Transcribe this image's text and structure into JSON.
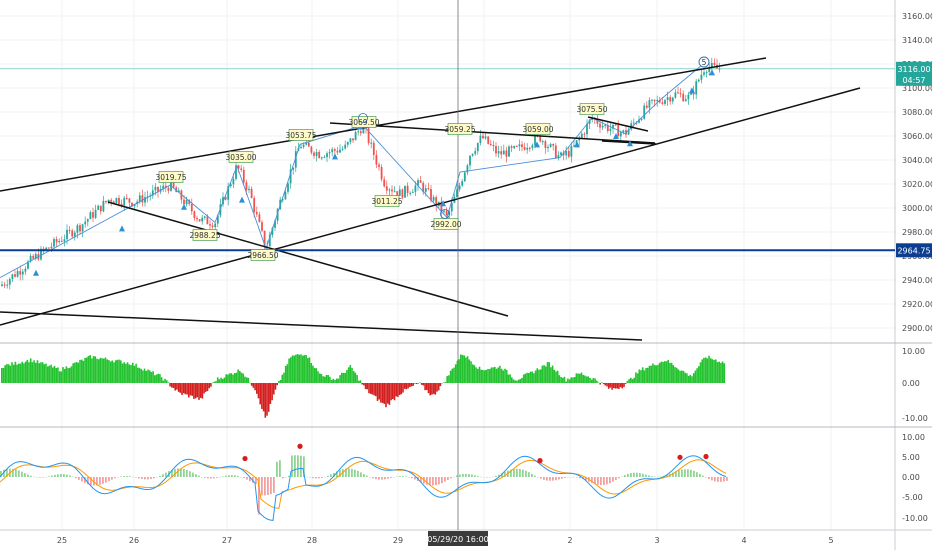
{
  "colors": {
    "bg": "#ffffff",
    "grid": "#eef0f3",
    "up": "#26a69a",
    "down": "#ef5350",
    "trend": "#111111",
    "support": "#0b3d91",
    "wave": "#4a90d9",
    "osc_up": "#22c32e",
    "osc_down": "#d41f1f",
    "macd": "#2196f3",
    "signal": "#ff9800",
    "price_tag": "#26a69a",
    "level_tag": "#0b3d91",
    "label_bg": "#fffbc8",
    "time_tag": "#3a3a3a"
  },
  "price_axis": {
    "ticks": [
      "3160.00",
      "3140.00",
      "3120.00",
      "3100.00",
      "3080.00",
      "3060.00",
      "3040.00",
      "3020.00",
      "3000.00",
      "2980.00",
      "2960.00",
      "2940.00",
      "2920.00",
      "2900.00"
    ],
    "current_price": "3116.00",
    "countdown": "04:57",
    "support_level": "2964.75"
  },
  "osc_axis": {
    "ticks": [
      "10.00",
      "0.00",
      "-10.00"
    ]
  },
  "macd_axis": {
    "ticks": [
      "10.00",
      "5.00",
      "0.00",
      "-5.00",
      "-10.00"
    ]
  },
  "time_axis": {
    "ticks": [
      "25",
      "26",
      "27",
      "28",
      "29",
      "2",
      "3",
      "4",
      "5"
    ],
    "crosshair_date": "05/29/20",
    "crosshair_time": "16:00"
  },
  "chart_data": {
    "type": "candlestick",
    "ylim": [
      2885,
      3170
    ],
    "wave_labels": [
      "3019.75",
      "2988.25",
      "3035.00",
      "2966.50",
      "3053.75",
      "3069.50",
      "3011.25",
      "3059.25",
      "2992.00",
      "3059.00",
      "3075.50"
    ],
    "wave_marker": "5",
    "support_level": 2964.75,
    "current_price": 3116.0
  }
}
